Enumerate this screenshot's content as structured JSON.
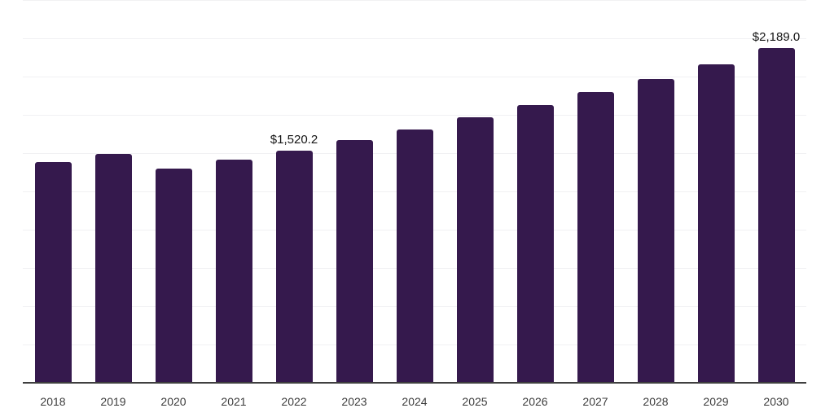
{
  "chart_data": {
    "type": "bar",
    "title": "",
    "xlabel": "",
    "ylabel": "",
    "categories": [
      "2018",
      "2019",
      "2020",
      "2021",
      "2022",
      "2023",
      "2024",
      "2025",
      "2026",
      "2027",
      "2028",
      "2029",
      "2030"
    ],
    "values": [
      1445,
      1498,
      1403,
      1462,
      1520.2,
      1589,
      1660,
      1739,
      1819,
      1904,
      1989,
      2085,
      2189
    ],
    "ylim": [
      0,
      2500
    ],
    "gridline_step": 250,
    "grid": "horizontal-light",
    "legend": "none",
    "y_tick_labels_visible": false,
    "annotations": [
      {
        "category": "2022",
        "label": "$1,520.2"
      },
      {
        "category": "2030",
        "label": "$2,189.0"
      }
    ],
    "colors": {
      "bar": "#35194d",
      "gridline": "#f1f1f3",
      "axis_line": "#3f3f3f",
      "tick_label": "#3c3c3c",
      "value_label": "#141414",
      "background": "#ffffff"
    }
  }
}
